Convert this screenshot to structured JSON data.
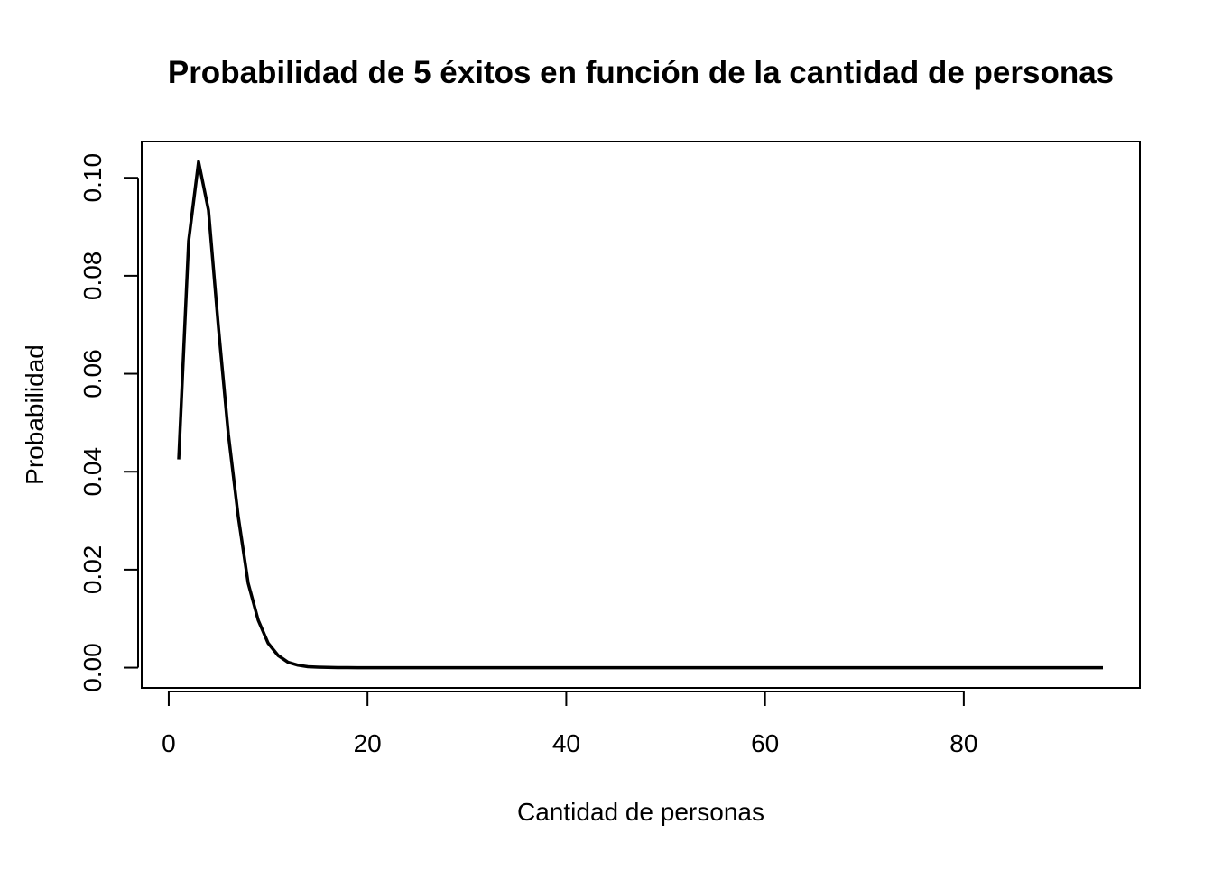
{
  "chart_data": {
    "type": "line",
    "title": "Probabilidad de 5 éxitos en función de la cantidad de personas",
    "xlabel": "Cantidad de personas",
    "ylabel": "Probabilidad",
    "xlim": [
      -2.72,
      97.72
    ],
    "ylim": [
      -0.00413,
      0.1074
    ],
    "x_ticks": [
      0,
      20,
      40,
      60,
      80
    ],
    "x_tick_labels": [
      "0",
      "20",
      "40",
      "60",
      "80"
    ],
    "y_ticks": [
      0.0,
      0.02,
      0.04,
      0.06,
      0.08,
      0.1
    ],
    "y_tick_labels": [
      "0.00",
      "0.02",
      "0.04",
      "0.06",
      "0.08",
      "0.10"
    ],
    "grid": false,
    "legend": "none",
    "colors": {
      "line": "#000000",
      "axes": "#000000",
      "background": "#ffffff"
    },
    "series": [
      {
        "x": [
          1,
          2,
          3,
          4,
          5,
          6,
          7,
          8,
          9,
          10,
          11,
          12,
          13,
          14,
          15,
          16,
          17,
          18,
          19,
          20,
          94
        ],
        "values": [
          0.0425,
          0.0871,
          0.1033,
          0.0934,
          0.0695,
          0.0477,
          0.0308,
          0.0172,
          0.0097,
          0.005,
          0.0025,
          0.0011,
          0.0005,
          0.0002,
          0.0001,
          5e-05,
          2e-05,
          1e-05,
          0.0,
          0.0,
          0.0
        ]
      }
    ]
  }
}
